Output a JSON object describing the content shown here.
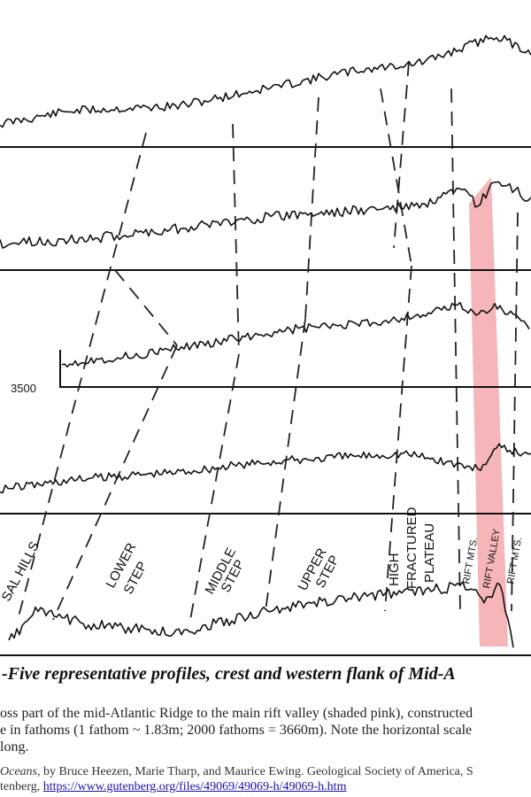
{
  "figure": {
    "depth_label": "3500",
    "zone_labels": {
      "abyssal_hills": "SAL HILLS",
      "lower_step_1": "LOWER",
      "lower_step_2": "STEP",
      "middle_step_1": "MIDDLE",
      "middle_step_2": "STEP",
      "upper_step_1": "UPPER",
      "upper_step_2": "STEP",
      "plateau_1": "HIGH",
      "plateau_2": "FRACTURED",
      "plateau_3": "PLATEAU",
      "rift_mts_left": "RIFT MTS.",
      "rift_valley": "RIFT VALLEY",
      "rift_mts_right": "RIFT MTS."
    },
    "highlight_color": "#f4a9ad"
  },
  "title": "-Five representative profiles, crest and western flank of Mid-A",
  "caption": {
    "line1": "oss part of the mid-Atlantic Ridge to the main rift valley (shaded pink), constructed",
    "line2": "e in fathoms (1 fathom ~ 1.83m; 2000 fathoms = 3660m). Note the horizontal scale",
    "line3": " long."
  },
  "source": {
    "line1_italic": "Oceans",
    "line1_rest": ", by Bruce Heezen, Marie Tharp, and Maurice Ewing. Geological Society of America, S",
    "line2_prefix": "tenberg, ",
    "link_text": "https://www.gutenberg.org/files/49069/49069-h/49069-h.htm"
  }
}
